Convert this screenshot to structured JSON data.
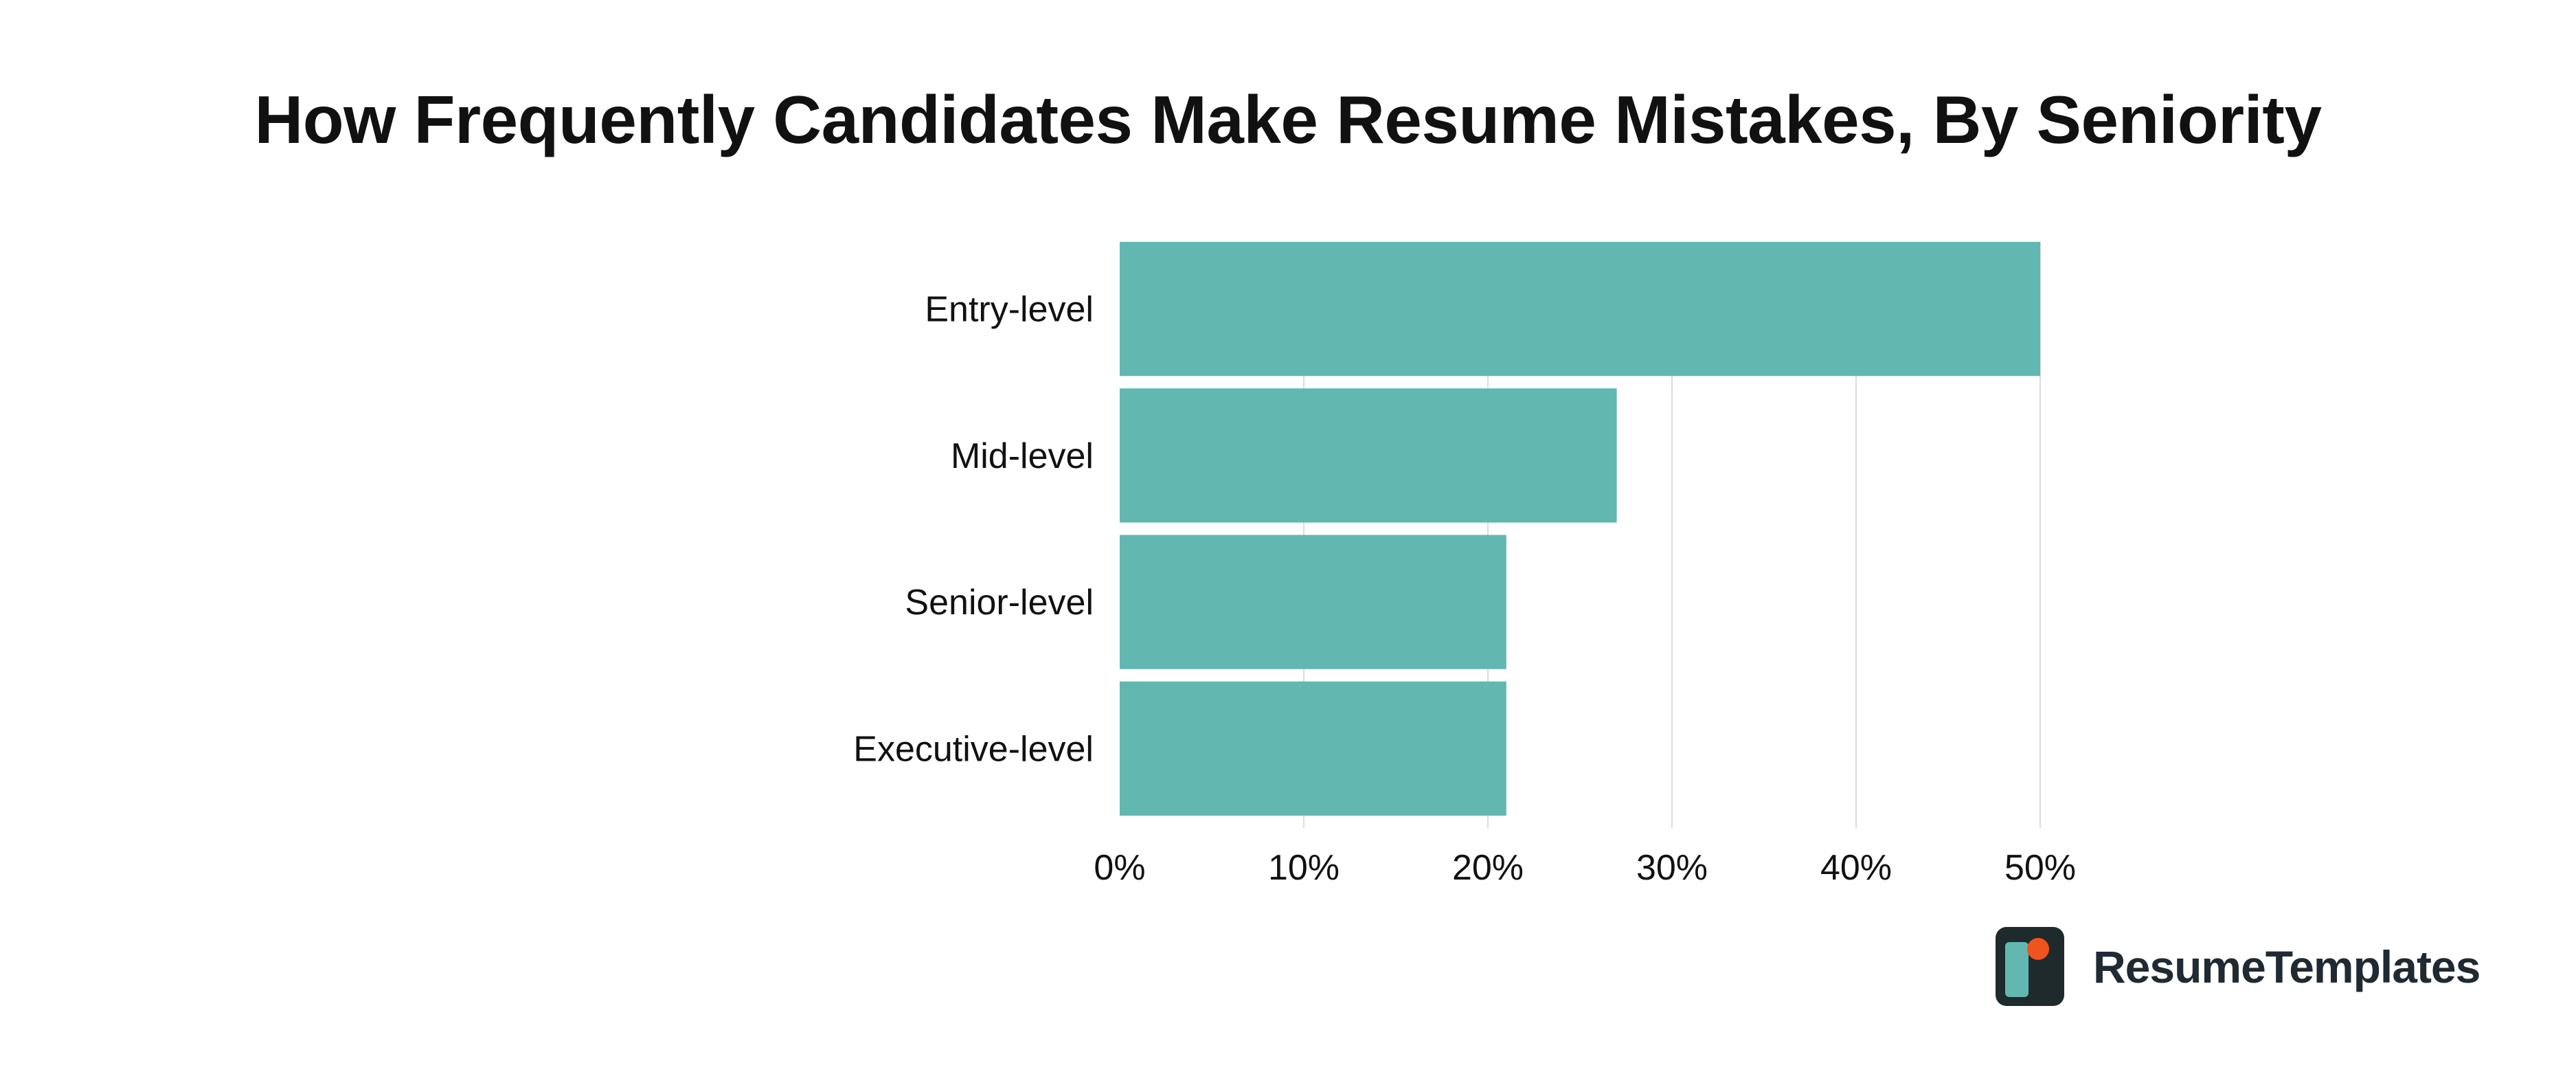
{
  "chart_data": {
    "type": "bar",
    "orientation": "horizontal",
    "title": "How Frequently Candidates Make Resume Mistakes, By Seniority",
    "categories": [
      "Entry-level",
      "Mid-level",
      "Senior-level",
      "Executive-level"
    ],
    "values": [
      50,
      27,
      21,
      21
    ],
    "unit": "%",
    "xlim": [
      0,
      50
    ],
    "xticks": [
      "0%",
      "10%",
      "20%",
      "30%",
      "40%",
      "50%"
    ],
    "xlabel": "",
    "ylabel": "",
    "grid": true,
    "legend": "none",
    "bar_color": "#62b7b1",
    "grid_color": "#dcdcdc",
    "text_color": "#111111"
  },
  "branding": {
    "logo_text": "ResumeTemplates",
    "logo_colors": {
      "dark": "#1f2a2d",
      "teal": "#62b7b1",
      "accent": "#f0531e"
    },
    "logo_icon": "resume-templates-logo-icon"
  }
}
